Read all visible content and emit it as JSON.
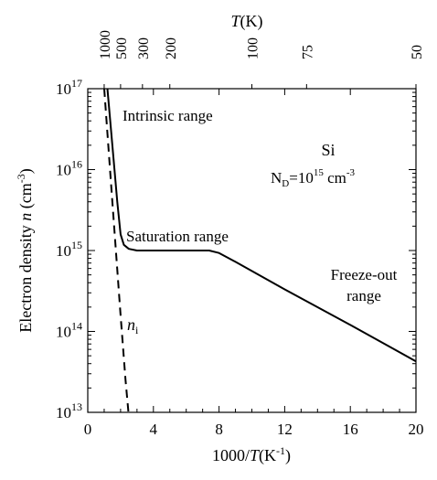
{
  "chart_data": {
    "type": "line",
    "xlabel": "1000/T(K-1)",
    "ylabel": "Electron density n (cm-3)",
    "top_axis_label": "T(K)",
    "xlim": [
      0,
      20
    ],
    "ylim_log10": [
      13,
      17
    ],
    "yscale": "log",
    "x_ticks": [
      0,
      4,
      8,
      12,
      16,
      20
    ],
    "x_tick_labels": [
      "0",
      "4",
      "8",
      "12",
      "16",
      "20"
    ],
    "y_ticks_log10": [
      13,
      14,
      15,
      16,
      17
    ],
    "y_tick_labels": [
      "10^13",
      "10^14",
      "10^15",
      "10^16",
      "10^17"
    ],
    "top_ticks_T": [
      1000,
      500,
      300,
      200,
      100,
      75,
      50
    ],
    "top_tick_labels": [
      "1000",
      "500",
      "300",
      "200",
      "100",
      "75",
      "50"
    ],
    "annotations": {
      "intrinsic": "Intrinsic range",
      "saturation": "Saturation range",
      "freeze_line1": "Freeze-out",
      "freeze_line2": "range",
      "ni": "ni",
      "material": "Si",
      "doping": "ND=10^15 cm-3"
    },
    "series": [
      {
        "name": "n",
        "x": [
          1.2,
          1.5,
          1.8,
          2.0,
          2.2,
          2.5,
          3.0,
          4.0,
          6.0,
          7.4,
          8.0,
          9.0,
          12.0,
          16.0,
          20.0
        ],
        "log10_y": [
          17.0,
          16.3,
          15.6,
          15.2,
          15.07,
          15.02,
          15.0,
          15.0,
          15.0,
          15.0,
          14.97,
          14.86,
          14.52,
          14.08,
          13.63
        ]
      },
      {
        "name": "ni",
        "style": "dashed",
        "x": [
          1.0,
          1.5,
          2.0,
          2.3,
          2.5
        ],
        "log10_y": [
          17.0,
          15.6,
          14.2,
          13.4,
          12.95
        ]
      }
    ]
  }
}
